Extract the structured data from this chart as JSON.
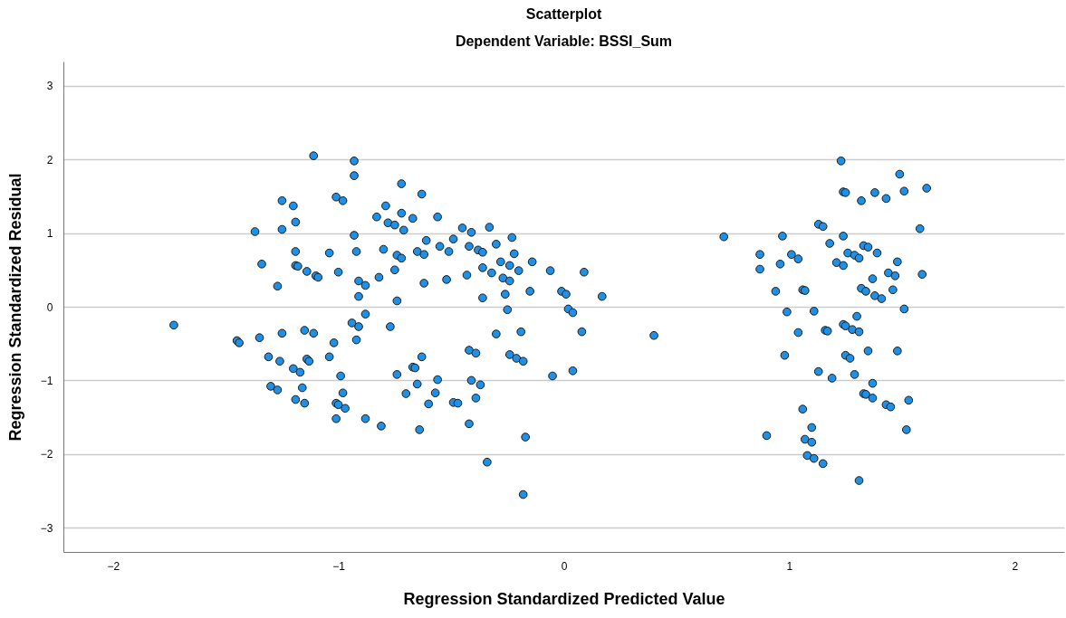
{
  "chart_data": {
    "type": "scatter",
    "title": "Scatterplot",
    "subtitle": "Dependent Variable: BSSI_Sum",
    "xlabel": "Regression Standardized Predicted Value",
    "ylabel": "Regression Standardized Residual",
    "x": [
      -1.11,
      -0.93,
      -0.93,
      -1.25,
      -1.2,
      -1.01,
      -0.98,
      -1.19,
      -1.37,
      -1.25,
      -0.93,
      -1.19,
      -1.04,
      -0.92,
      -1.34,
      -1.19,
      -1.18,
      -1.14,
      -1.1,
      -1.09,
      -1.0,
      -0.91,
      -0.88,
      -0.91,
      -1.27,
      -1.73,
      -1.45,
      -1.44,
      -1.35,
      -1.25,
      -1.15,
      -1.11,
      -1.02,
      -0.88,
      -0.94,
      -0.91,
      -0.92,
      -1.31,
      -1.26,
      -1.14,
      -1.13,
      -1.04,
      -1.2,
      -1.17,
      -0.99,
      -1.3,
      -1.27,
      -1.16,
      -0.98,
      -1.19,
      -1.15,
      -1.01,
      -1.0,
      -0.97,
      -1.01,
      -0.88,
      -0.72,
      -0.63,
      -0.79,
      -0.83,
      -0.72,
      -0.67,
      -0.78,
      -0.75,
      -0.71,
      -0.56,
      -0.45,
      -0.41,
      -0.33,
      -0.23,
      -0.61,
      -0.8,
      -0.74,
      -0.72,
      -0.65,
      -0.62,
      -0.55,
      -0.51,
      -0.49,
      -0.42,
      -0.38,
      -0.36,
      -0.3,
      -0.22,
      -0.28,
      -0.24,
      -0.14,
      -0.06,
      0.09,
      -0.36,
      -0.32,
      -0.27,
      -0.24,
      -0.2,
      -0.82,
      -0.75,
      -0.62,
      -0.52,
      -0.43,
      -0.74,
      -0.36,
      -0.26,
      -0.15,
      -0.01,
      0.01,
      0.17,
      -0.25,
      0.02,
      0.04,
      -0.77,
      -0.3,
      -0.19,
      0.08,
      -0.63,
      -0.67,
      -0.66,
      -0.74,
      -0.42,
      -0.39,
      -0.24,
      -0.21,
      -0.18,
      -0.05,
      0.04,
      -0.56,
      -0.65,
      -0.41,
      -0.37,
      -0.7,
      -0.57,
      -0.6,
      -0.49,
      -0.47,
      -0.39,
      -0.81,
      -0.64,
      -0.42,
      -0.17,
      -0.34,
      -0.18,
      0.4,
      0.71,
      0.97,
      0.87,
      0.87,
      0.96,
      1.01,
      1.04,
      0.94,
      1.06,
      1.07,
      0.99,
      1.11,
      1.04,
      1.16,
      1.17,
      0.98,
      1.13,
      1.19,
      1.06,
      0.9,
      1.1,
      1.07,
      1.1,
      1.08,
      1.11,
      1.15,
      1.31,
      1.23,
      1.49,
      1.24,
      1.25,
      1.32,
      1.38,
      1.43,
      1.51,
      1.61,
      1.13,
      1.15,
      1.24,
      1.58,
      1.18,
      1.33,
      1.35,
      1.39,
      1.26,
      1.29,
      1.31,
      1.21,
      1.24,
      1.48,
      1.37,
      1.44,
      1.47,
      1.59,
      1.32,
      1.34,
      1.38,
      1.41,
      1.46,
      1.51,
      1.3,
      1.24,
      1.25,
      1.28,
      1.31,
      1.35,
      1.48,
      1.25,
      1.27,
      1.29,
      1.37,
      1.33,
      1.34,
      1.37,
      1.43,
      1.45,
      1.53,
      1.52
    ],
    "values": [
      2.05,
      1.98,
      1.78,
      1.44,
      1.37,
      1.49,
      1.44,
      1.15,
      1.02,
      1.05,
      0.97,
      0.75,
      0.73,
      0.75,
      0.58,
      0.56,
      0.55,
      0.48,
      0.42,
      0.4,
      0.47,
      0.35,
      0.29,
      0.14,
      0.28,
      -0.25,
      -0.46,
      -0.49,
      -0.42,
      -0.36,
      -0.32,
      -0.36,
      -0.49,
      -0.1,
      -0.22,
      -0.27,
      -0.45,
      -0.68,
      -0.74,
      -0.71,
      -0.74,
      -0.68,
      -0.84,
      -0.89,
      -0.94,
      -1.08,
      -1.13,
      -1.1,
      -1.17,
      -1.26,
      -1.31,
      -1.31,
      -1.33,
      -1.38,
      -1.52,
      -1.52,
      1.67,
      1.53,
      1.37,
      1.22,
      1.27,
      1.2,
      1.14,
      1.11,
      1.04,
      1.22,
      1.07,
      1.01,
      1.08,
      0.94,
      0.9,
      0.78,
      0.7,
      0.66,
      0.75,
      0.71,
      0.82,
      0.75,
      0.92,
      0.82,
      0.77,
      0.74,
      0.85,
      0.72,
      0.61,
      0.56,
      0.61,
      0.49,
      0.47,
      0.53,
      0.46,
      0.39,
      0.35,
      0.49,
      0.4,
      0.5,
      0.32,
      0.37,
      0.43,
      0.08,
      0.12,
      0.17,
      0.21,
      0.21,
      0.17,
      0.14,
      -0.04,
      -0.03,
      -0.08,
      -0.27,
      -0.37,
      -0.34,
      -0.34,
      -0.68,
      -0.82,
      -0.83,
      -0.92,
      -0.59,
      -0.63,
      -0.65,
      -0.7,
      -0.74,
      -0.94,
      -0.87,
      -0.99,
      -1.05,
      -1.0,
      -1.06,
      -1.18,
      -1.17,
      -1.32,
      -1.3,
      -1.31,
      -1.24,
      -1.62,
      -1.67,
      -1.59,
      -1.77,
      -2.11,
      -2.55,
      -0.39,
      0.95,
      0.96,
      0.71,
      0.51,
      0.58,
      0.71,
      0.65,
      0.21,
      0.23,
      0.22,
      -0.07,
      -0.06,
      -0.35,
      -0.32,
      -0.33,
      -0.66,
      -0.88,
      -0.97,
      -1.39,
      -1.75,
      -1.64,
      -1.8,
      -1.84,
      -2.02,
      -2.06,
      -2.13,
      -2.36,
      1.98,
      1.8,
      1.56,
      1.55,
      1.44,
      1.55,
      1.47,
      1.57,
      1.61,
      1.12,
      1.09,
      0.96,
      1.06,
      0.86,
      0.83,
      0.81,
      0.73,
      0.73,
      0.7,
      0.66,
      0.6,
      0.56,
      0.61,
      0.38,
      0.46,
      0.42,
      0.44,
      0.25,
      0.21,
      0.15,
      0.11,
      0.23,
      -0.03,
      -0.13,
      -0.24,
      -0.26,
      -0.31,
      -0.34,
      -0.6,
      -0.6,
      -0.66,
      -0.7,
      -0.92,
      -1.04,
      -1.18,
      -1.19,
      -1.24,
      -1.33,
      -1.36,
      -1.27,
      -1.67
    ],
    "color": "#1e90e6",
    "marker": "circle",
    "xlim": [
      -2.22,
      2.22
    ],
    "ylim": [
      -3.33,
      3.33
    ],
    "xticks": [
      -2,
      -1,
      0,
      1,
      2
    ],
    "yticks": [
      -3,
      -2,
      -1,
      0,
      1,
      2,
      3
    ],
    "grid": "y"
  }
}
